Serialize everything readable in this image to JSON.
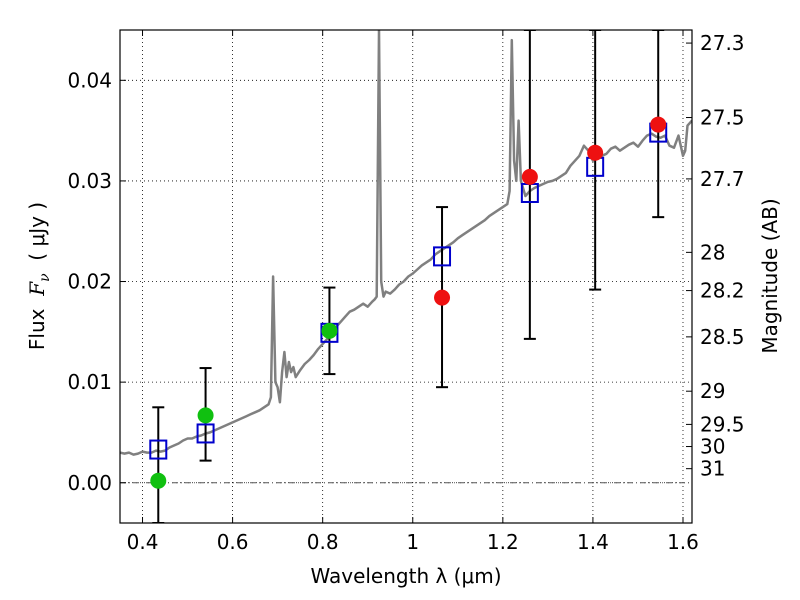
{
  "chart_data": {
    "type": "scatter",
    "xlabel": "Wavelength  λ (μm)",
    "ylabel_parts": {
      "prefix": "Flux  ",
      "symbol": "F",
      "subscript": "ν",
      "unit": "  ( μJy )"
    },
    "y2label": "Magnitude (AB)",
    "xlim": [
      0.35,
      1.62
    ],
    "ylim": [
      -0.004,
      0.045
    ],
    "grid": true,
    "x_ticks": [
      {
        "value": 0.4,
        "label": "0.4"
      },
      {
        "value": 0.6,
        "label": "0.6"
      },
      {
        "value": 0.8,
        "label": "0.8"
      },
      {
        "value": 1.0,
        "label": "1"
      },
      {
        "value": 1.2,
        "label": "1.2"
      },
      {
        "value": 1.4,
        "label": "1.4"
      },
      {
        "value": 1.6,
        "label": "1.6"
      }
    ],
    "y_ticks": [
      {
        "value": 0.0,
        "label": "0.00"
      },
      {
        "value": 0.01,
        "label": "0.01"
      },
      {
        "value": 0.02,
        "label": "0.02"
      },
      {
        "value": 0.03,
        "label": "0.03"
      },
      {
        "value": 0.04,
        "label": "0.04"
      }
    ],
    "y2_ticks": [
      {
        "flux": 0.0437,
        "label": "27.3"
      },
      {
        "flux": 0.0363,
        "label": "27.5"
      },
      {
        "flux": 0.0302,
        "label": "27.7"
      },
      {
        "flux": 0.0229,
        "label": "28"
      },
      {
        "flux": 0.0191,
        "label": "28.2"
      },
      {
        "flux": 0.0145,
        "label": "28.5"
      },
      {
        "flux": 0.0091,
        "label": "29"
      },
      {
        "flux": 0.0058,
        "label": "29.5"
      },
      {
        "flux": 0.0036,
        "label": "30"
      },
      {
        "flux": 0.0014,
        "label": "31"
      }
    ],
    "colors": {
      "spectrum": "#808080",
      "model_box": "#0000cc",
      "green_obs": "#10c010",
      "red_obs": "#ee1111",
      "error_bar": "#000000",
      "zero_line": "#555555"
    },
    "spectrum": {
      "name": "",
      "points": [
        [
          0.35,
          0.003
        ],
        [
          0.36,
          0.0029
        ],
        [
          0.37,
          0.003
        ],
        [
          0.38,
          0.0028
        ],
        [
          0.39,
          0.0029
        ],
        [
          0.4,
          0.0031
        ],
        [
          0.41,
          0.003
        ],
        [
          0.42,
          0.003
        ],
        [
          0.43,
          0.0032
        ],
        [
          0.44,
          0.0031
        ],
        [
          0.45,
          0.0032
        ],
        [
          0.46,
          0.0035
        ],
        [
          0.47,
          0.0037
        ],
        [
          0.48,
          0.0039
        ],
        [
          0.49,
          0.0042
        ],
        [
          0.5,
          0.0044
        ],
        [
          0.51,
          0.0044
        ],
        [
          0.52,
          0.0046
        ],
        [
          0.53,
          0.0047
        ],
        [
          0.54,
          0.0049
        ],
        [
          0.55,
          0.005
        ],
        [
          0.56,
          0.0052
        ],
        [
          0.57,
          0.0054
        ],
        [
          0.58,
          0.0056
        ],
        [
          0.59,
          0.0058
        ],
        [
          0.6,
          0.006
        ],
        [
          0.61,
          0.0062
        ],
        [
          0.62,
          0.0064
        ],
        [
          0.63,
          0.0066
        ],
        [
          0.64,
          0.0068
        ],
        [
          0.65,
          0.007
        ],
        [
          0.66,
          0.0072
        ],
        [
          0.67,
          0.0075
        ],
        [
          0.68,
          0.0078
        ],
        [
          0.685,
          0.0085
        ],
        [
          0.69,
          0.0205
        ],
        [
          0.695,
          0.01
        ],
        [
          0.7,
          0.0095
        ],
        [
          0.705,
          0.008
        ],
        [
          0.71,
          0.011
        ],
        [
          0.715,
          0.013
        ],
        [
          0.72,
          0.0105
        ],
        [
          0.725,
          0.012
        ],
        [
          0.73,
          0.011
        ],
        [
          0.735,
          0.0115
        ],
        [
          0.74,
          0.0105
        ],
        [
          0.75,
          0.0112
        ],
        [
          0.76,
          0.0118
        ],
        [
          0.77,
          0.0122
        ],
        [
          0.78,
          0.0127
        ],
        [
          0.79,
          0.0133
        ],
        [
          0.8,
          0.0138
        ],
        [
          0.81,
          0.0143
        ],
        [
          0.82,
          0.015
        ],
        [
          0.83,
          0.0155
        ],
        [
          0.84,
          0.016
        ],
        [
          0.85,
          0.0165
        ],
        [
          0.86,
          0.017
        ],
        [
          0.87,
          0.0172
        ],
        [
          0.88,
          0.0175
        ],
        [
          0.89,
          0.0178
        ],
        [
          0.9,
          0.0175
        ],
        [
          0.91,
          0.018
        ],
        [
          0.915,
          0.0182
        ],
        [
          0.92,
          0.0185
        ],
        [
          0.925,
          0.045
        ],
        [
          0.93,
          0.02
        ],
        [
          0.935,
          0.0185
        ],
        [
          0.94,
          0.019
        ],
        [
          0.95,
          0.0188
        ],
        [
          0.96,
          0.0192
        ],
        [
          0.97,
          0.0197
        ],
        [
          0.98,
          0.02
        ],
        [
          0.99,
          0.0205
        ],
        [
          1.0,
          0.0208
        ],
        [
          1.01,
          0.0212
        ],
        [
          1.02,
          0.0216
        ],
        [
          1.03,
          0.0219
        ],
        [
          1.04,
          0.0222
        ],
        [
          1.05,
          0.0227
        ],
        [
          1.06,
          0.023
        ],
        [
          1.07,
          0.0233
        ],
        [
          1.08,
          0.0236
        ],
        [
          1.09,
          0.0239
        ],
        [
          1.1,
          0.0243
        ],
        [
          1.11,
          0.0246
        ],
        [
          1.12,
          0.0249
        ],
        [
          1.13,
          0.0252
        ],
        [
          1.14,
          0.0255
        ],
        [
          1.15,
          0.0258
        ],
        [
          1.16,
          0.0261
        ],
        [
          1.17,
          0.0265
        ],
        [
          1.18,
          0.0268
        ],
        [
          1.19,
          0.0271
        ],
        [
          1.2,
          0.0274
        ],
        [
          1.21,
          0.0277
        ],
        [
          1.215,
          0.029
        ],
        [
          1.22,
          0.044
        ],
        [
          1.225,
          0.032
        ],
        [
          1.23,
          0.03
        ],
        [
          1.235,
          0.036
        ],
        [
          1.24,
          0.03
        ],
        [
          1.25,
          0.0285
        ],
        [
          1.26,
          0.029
        ],
        [
          1.27,
          0.0293
        ],
        [
          1.28,
          0.0295
        ],
        [
          1.29,
          0.0297
        ],
        [
          1.3,
          0.0299
        ],
        [
          1.31,
          0.03
        ],
        [
          1.32,
          0.0302
        ],
        [
          1.33,
          0.0305
        ],
        [
          1.34,
          0.0308
        ],
        [
          1.35,
          0.0315
        ],
        [
          1.36,
          0.032
        ],
        [
          1.37,
          0.0325
        ],
        [
          1.38,
          0.0335
        ],
        [
          1.39,
          0.033
        ],
        [
          1.4,
          0.032
        ],
        [
          1.41,
          0.0328
        ],
        [
          1.42,
          0.0325
        ],
        [
          1.43,
          0.0327
        ],
        [
          1.44,
          0.0332
        ],
        [
          1.45,
          0.0334
        ],
        [
          1.46,
          0.033
        ],
        [
          1.47,
          0.0333
        ],
        [
          1.48,
          0.0336
        ],
        [
          1.49,
          0.0338
        ],
        [
          1.5,
          0.0334
        ],
        [
          1.51,
          0.034
        ],
        [
          1.52,
          0.0345
        ],
        [
          1.53,
          0.0347
        ],
        [
          1.54,
          0.0344
        ],
        [
          1.55,
          0.0343
        ],
        [
          1.56,
          0.0345
        ],
        [
          1.57,
          0.0335
        ],
        [
          1.58,
          0.0333
        ],
        [
          1.59,
          0.0345
        ],
        [
          1.6,
          0.0325
        ],
        [
          1.605,
          0.033
        ],
        [
          1.61,
          0.0355
        ],
        [
          1.62,
          0.036
        ]
      ]
    },
    "error_bars": [
      {
        "x": 0.435,
        "low": -0.004,
        "high": 0.0075
      },
      {
        "x": 0.54,
        "low": 0.0022,
        "high": 0.0114
      },
      {
        "x": 0.815,
        "low": 0.0108,
        "high": 0.0194
      },
      {
        "x": 1.065,
        "low": 0.0095,
        "high": 0.0274
      },
      {
        "x": 1.26,
        "low": 0.0143,
        "high": 0.045
      },
      {
        "x": 1.405,
        "low": 0.0192,
        "high": 0.045
      },
      {
        "x": 1.545,
        "low": 0.0264,
        "high": 0.045
      }
    ],
    "model_boxes": [
      {
        "x": 0.435,
        "y": 0.0033
      },
      {
        "x": 0.54,
        "y": 0.0049
      },
      {
        "x": 0.815,
        "y": 0.0149
      },
      {
        "x": 1.065,
        "y": 0.0225
      },
      {
        "x": 1.26,
        "y": 0.0288
      },
      {
        "x": 1.405,
        "y": 0.0314
      },
      {
        "x": 1.545,
        "y": 0.0348
      }
    ],
    "green_points": [
      {
        "x": 0.435,
        "y": 0.0002
      },
      {
        "x": 0.54,
        "y": 0.0067
      },
      {
        "x": 0.815,
        "y": 0.0151
      }
    ],
    "red_points": [
      {
        "x": 1.065,
        "y": 0.0184
      },
      {
        "x": 1.26,
        "y": 0.0304
      },
      {
        "x": 1.405,
        "y": 0.0328
      },
      {
        "x": 1.545,
        "y": 0.0356
      }
    ]
  }
}
